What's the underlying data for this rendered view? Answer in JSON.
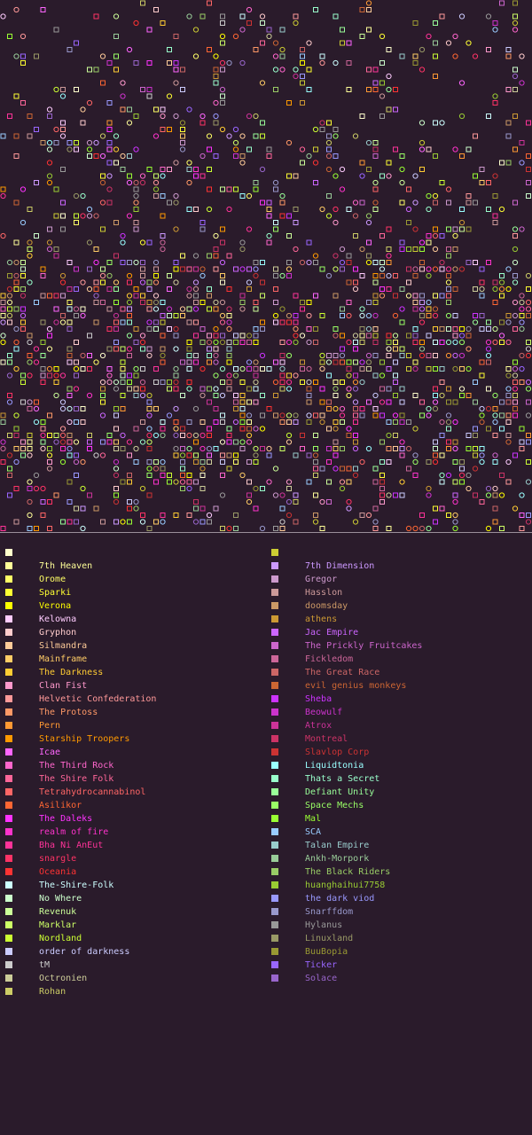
{
  "legend": {
    "left": [
      {
        "label": "",
        "color": "#ffffcc"
      },
      {
        "label": "7th Heaven",
        "color": "#ffff99"
      },
      {
        "label": "Orome",
        "color": "#ffff66"
      },
      {
        "label": "Sparki",
        "color": "#ffff33"
      },
      {
        "label": "Verona",
        "color": "#ffff00"
      },
      {
        "label": "Kelowna",
        "color": "#ffccff"
      },
      {
        "label": "Gryphon",
        "color": "#ffcccc"
      },
      {
        "label": "Silmandra",
        "color": "#ffcc99"
      },
      {
        "label": "Mainframe",
        "color": "#ffcc66"
      },
      {
        "label": "The Darkness",
        "color": "#ffcc33"
      },
      {
        "label": "Clan Fist",
        "color": "#ff99cc"
      },
      {
        "label": "Helvetic Confederation",
        "color": "#ff9999"
      },
      {
        "label": "The Protoss",
        "color": "#ff9966"
      },
      {
        "label": "Pern",
        "color": "#ff9933"
      },
      {
        "label": "Starship Troopers",
        "color": "#ff9900"
      },
      {
        "label": "Icae",
        "color": "#ff66ff"
      },
      {
        "label": "The Third Rock",
        "color": "#ff66cc"
      },
      {
        "label": "The Shire Folk",
        "color": "#ff6699"
      },
      {
        "label": "Tetrahydrocannabinol",
        "color": "#ff6666"
      },
      {
        "label": "Asilikor",
        "color": "#ff6633"
      },
      {
        "label": "The Daleks",
        "color": "#ff33ff"
      },
      {
        "label": "realm of fire",
        "color": "#ff33cc"
      },
      {
        "label": "Bha Ni AnEut",
        "color": "#ff3399"
      },
      {
        "label": "snargle",
        "color": "#ff3366"
      },
      {
        "label": "Oceania",
        "color": "#ff3333"
      },
      {
        "label": "The-Shire-Folk",
        "color": "#ccffff"
      },
      {
        "label": "No Where",
        "color": "#ccffcc"
      },
      {
        "label": "Revenuk",
        "color": "#ccff99"
      },
      {
        "label": "Marklar",
        "color": "#ccff66"
      },
      {
        "label": "Nordland",
        "color": "#ccff33"
      },
      {
        "label": "order of darkness",
        "color": "#ccccff"
      },
      {
        "label": "tM",
        "color": "#cccccc"
      },
      {
        "label": "Octronien",
        "color": "#cccc99"
      },
      {
        "label": "Rohan",
        "color": "#cccc66"
      }
    ],
    "right": [
      {
        "label": "",
        "color": "#cccc33"
      },
      {
        "label": "7th Dimension",
        "color": "#cc99ff"
      },
      {
        "label": "Gregor",
        "color": "#cc99cc"
      },
      {
        "label": "Hasslon",
        "color": "#cc9999"
      },
      {
        "label": "doomsday",
        "color": "#cc9966"
      },
      {
        "label": "athens",
        "color": "#cc9933"
      },
      {
        "label": "Jac Empire",
        "color": "#cc66ff"
      },
      {
        "label": "The Prickly Fruitcakes",
        "color": "#cc66cc"
      },
      {
        "label": "Fickledom",
        "color": "#cc6699"
      },
      {
        "label": "The Great Race",
        "color": "#cc6666"
      },
      {
        "label": "evil genius monkeys",
        "color": "#cc6633"
      },
      {
        "label": "Sheba",
        "color": "#cc33ff"
      },
      {
        "label": "Beowulf",
        "color": "#cc33cc"
      },
      {
        "label": "Atrox",
        "color": "#cc3399"
      },
      {
        "label": "Montreal",
        "color": "#cc3366"
      },
      {
        "label": "Slavlop Corp",
        "color": "#cc3333"
      },
      {
        "label": "Liquidtonia",
        "color": "#99ffff"
      },
      {
        "label": "Thats a Secret",
        "color": "#99ffcc"
      },
      {
        "label": "Defiant Unity",
        "color": "#99ff99"
      },
      {
        "label": "Space Mechs",
        "color": "#99ff66"
      },
      {
        "label": "Mal",
        "color": "#99ff33"
      },
      {
        "label": "SCA",
        "color": "#99ccff"
      },
      {
        "label": "Talan Empire",
        "color": "#99cccc"
      },
      {
        "label": "Ankh-Morpork",
        "color": "#99cc99"
      },
      {
        "label": "The Black Riders",
        "color": "#99cc66"
      },
      {
        "label": "huanghaihui7758",
        "color": "#99cc33"
      },
      {
        "label": "the dark viod",
        "color": "#9999ff"
      },
      {
        "label": "Snarffdom",
        "color": "#9999cc"
      },
      {
        "label": "Hylanus",
        "color": "#999999"
      },
      {
        "label": "Linuxland",
        "color": "#999966"
      },
      {
        "label": "BuuBopia",
        "color": "#999933"
      },
      {
        "label": "Ticker",
        "color": "#9966ff"
      },
      {
        "label": "Solace",
        "color": "#9966cc"
      }
    ]
  }
}
